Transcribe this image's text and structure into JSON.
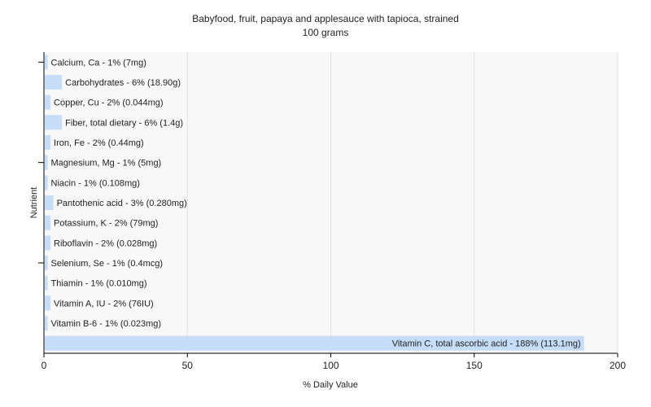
{
  "chart_data": {
    "type": "bar",
    "orientation": "horizontal",
    "title": "Babyfood, fruit, papaya and applesauce with tapioca, strained",
    "subtitle": "100 grams",
    "xlabel": "% Daily Value",
    "ylabel": "Nutrient",
    "xlim": [
      0,
      200
    ],
    "xticks": [
      0,
      50,
      100,
      150,
      200
    ],
    "grid": true,
    "bar_color": "#c5ddf8",
    "categories": [
      "Calcium, Ca",
      "Carbohydrates",
      "Copper, Cu",
      "Fiber, total dietary",
      "Iron, Fe",
      "Magnesium, Mg",
      "Niacin",
      "Pantothenic acid",
      "Potassium, K",
      "Riboflavin",
      "Selenium, Se",
      "Thiamin",
      "Vitamin A, IU",
      "Vitamin B-6",
      "Vitamin C, total ascorbic acid"
    ],
    "values": [
      1,
      6,
      2,
      6,
      2,
      1,
      1,
      3,
      2,
      2,
      1,
      1,
      2,
      1,
      188
    ],
    "labels": [
      "Calcium, Ca - 1% (7mg)",
      "Carbohydrates - 6% (18.90g)",
      "Copper, Cu - 2% (0.044mg)",
      "Fiber, total dietary - 6% (1.4g)",
      "Iron, Fe - 2% (0.44mg)",
      "Magnesium, Mg - 1% (5mg)",
      "Niacin - 1% (0.108mg)",
      "Pantothenic acid - 3% (0.280mg)",
      "Potassium, K - 2% (79mg)",
      "Riboflavin - 2% (0.028mg)",
      "Selenium, Se - 1% (0.4mcg)",
      "Thiamin - 1% (0.010mg)",
      "Vitamin A, IU - 2% (76IU)",
      "Vitamin B-6 - 1% (0.023mg)",
      "Vitamin C, total ascorbic acid - 188% (113.1mg)"
    ]
  }
}
